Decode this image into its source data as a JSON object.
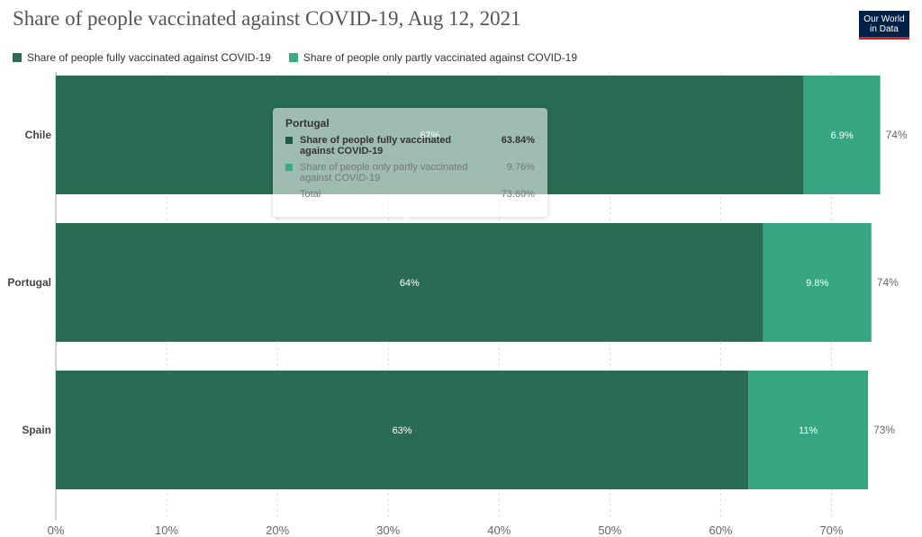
{
  "header": {
    "title": "Share of people vaccinated against COVID-19, Aug 12, 2021",
    "logo_line1": "Our World",
    "logo_line2": "in Data"
  },
  "legend": [
    {
      "label": "Share of people fully vaccinated against COVID-19",
      "color": "#2e6b55"
    },
    {
      "label": "Share of people only partly vaccinated against COVID-19",
      "color": "#3aaa80"
    }
  ],
  "chart_data": {
    "type": "bar",
    "orientation": "horizontal",
    "stacked": true,
    "categories": [
      "Chile",
      "Portugal",
      "Spain"
    ],
    "series": [
      {
        "name": "Share of people fully vaccinated against COVID-19",
        "values": [
          67.5,
          63.84,
          62.5
        ],
        "labels": [
          "67%",
          "64%",
          "63%"
        ],
        "color": "#2a6b53"
      },
      {
        "name": "Share of people only partly vaccinated against COVID-19",
        "values": [
          6.9,
          9.76,
          10.8
        ],
        "labels": [
          "6.9%",
          "9.8%",
          "11%"
        ],
        "color": "#35a681"
      }
    ],
    "totals": [
      "74%",
      "74%",
      "73%"
    ],
    "x_ticks": [
      0,
      10,
      20,
      30,
      40,
      50,
      60,
      70
    ],
    "x_tick_labels": [
      "0%",
      "10%",
      "20%",
      "30%",
      "40%",
      "50%",
      "60%",
      "70%"
    ],
    "xlim": [
      0,
      75
    ],
    "grid": "vertical dashed",
    "legend_position": "top-left"
  },
  "tooltip": {
    "country": "Portugal",
    "rows": [
      {
        "label": "Share of people fully vaccinated against COVID-19",
        "value": "63.84%",
        "color": "#1f5c46"
      },
      {
        "label": "Share of people only partly vaccinated against COVID-19",
        "value": "9.76%",
        "color": "#3aaa80"
      }
    ],
    "total_label": "Total",
    "total_value": "73.60%"
  }
}
